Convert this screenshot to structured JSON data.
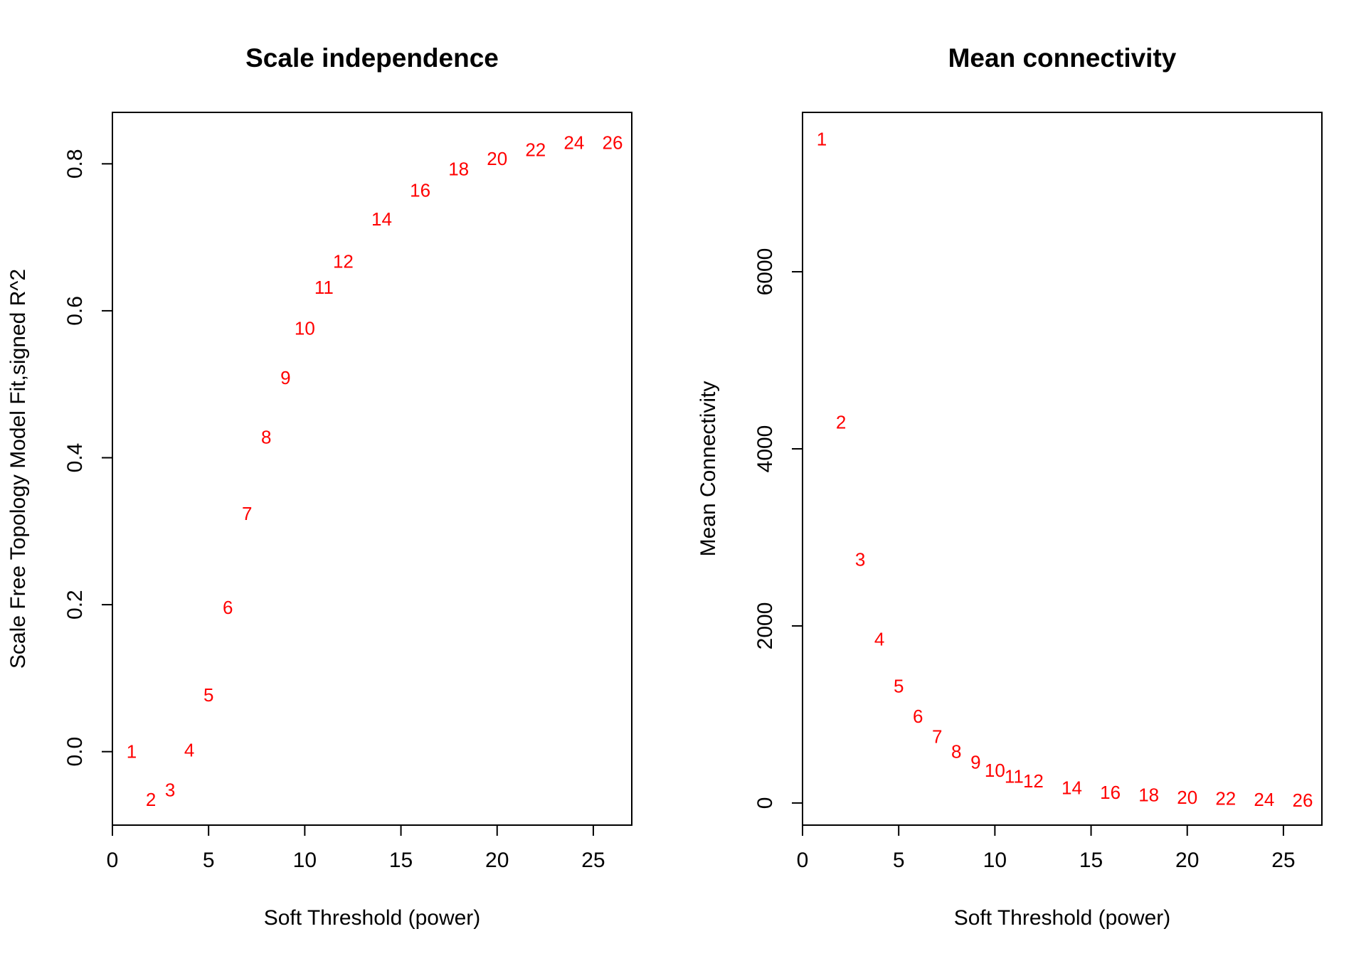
{
  "chart_data": [
    {
      "type": "scatter",
      "title": "Scale independence",
      "xlabel": "Soft Threshold (power)",
      "ylabel": "Scale Free Topology Model Fit,signed R^2",
      "xlim": [
        0,
        27
      ],
      "ylim": [
        -0.1,
        0.87
      ],
      "xticks": [
        0,
        5,
        10,
        15,
        20,
        25
      ],
      "yticks": [
        0.0,
        0.2,
        0.4,
        0.6,
        0.8
      ],
      "ytick_labels": [
        "0.0",
        "0.2",
        "0.4",
        "0.6",
        "0.8"
      ],
      "marker_color": "#ff0000",
      "marker": "text labels of power value",
      "points": [
        {
          "x": 1,
          "y": 0.0,
          "label": "1"
        },
        {
          "x": 2,
          "y": -0.065,
          "label": "2"
        },
        {
          "x": 3,
          "y": -0.052,
          "label": "3"
        },
        {
          "x": 4,
          "y": 0.002,
          "label": "4"
        },
        {
          "x": 5,
          "y": 0.077,
          "label": "5"
        },
        {
          "x": 6,
          "y": 0.196,
          "label": "6"
        },
        {
          "x": 7,
          "y": 0.324,
          "label": "7"
        },
        {
          "x": 8,
          "y": 0.428,
          "label": "8"
        },
        {
          "x": 9,
          "y": 0.509,
          "label": "9"
        },
        {
          "x": 10,
          "y": 0.576,
          "label": "10"
        },
        {
          "x": 11,
          "y": 0.632,
          "label": "11"
        },
        {
          "x": 12,
          "y": 0.667,
          "label": "12"
        },
        {
          "x": 14,
          "y": 0.725,
          "label": "14"
        },
        {
          "x": 16,
          "y": 0.764,
          "label": "16"
        },
        {
          "x": 18,
          "y": 0.793,
          "label": "18"
        },
        {
          "x": 20,
          "y": 0.807,
          "label": "20"
        },
        {
          "x": 22,
          "y": 0.819,
          "label": "22"
        },
        {
          "x": 24,
          "y": 0.829,
          "label": "24"
        },
        {
          "x": 26,
          "y": 0.829,
          "label": "26"
        }
      ]
    },
    {
      "type": "scatter",
      "title": "Mean connectivity",
      "xlabel": "Soft Threshold (power)",
      "ylabel": "Mean Connectivity",
      "xlim": [
        0,
        27
      ],
      "ylim": [
        -250,
        7800
      ],
      "xticks": [
        0,
        5,
        10,
        15,
        20,
        25
      ],
      "yticks": [
        0,
        2000,
        4000,
        6000
      ],
      "ytick_labels": [
        "0",
        "2000",
        "4000",
        "6000"
      ],
      "marker_color": "#ff0000",
      "marker": "text labels of power value",
      "points": [
        {
          "x": 1,
          "y": 7500,
          "label": "1"
        },
        {
          "x": 2,
          "y": 4300,
          "label": "2"
        },
        {
          "x": 3,
          "y": 2750,
          "label": "3"
        },
        {
          "x": 4,
          "y": 1850,
          "label": "4"
        },
        {
          "x": 5,
          "y": 1320,
          "label": "5"
        },
        {
          "x": 6,
          "y": 980,
          "label": "6"
        },
        {
          "x": 7,
          "y": 750,
          "label": "7"
        },
        {
          "x": 8,
          "y": 580,
          "label": "8"
        },
        {
          "x": 9,
          "y": 460,
          "label": "9"
        },
        {
          "x": 10,
          "y": 370,
          "label": "10"
        },
        {
          "x": 11,
          "y": 300,
          "label": "11"
        },
        {
          "x": 12,
          "y": 250,
          "label": "12"
        },
        {
          "x": 14,
          "y": 170,
          "label": "14"
        },
        {
          "x": 16,
          "y": 120,
          "label": "16"
        },
        {
          "x": 18,
          "y": 90,
          "label": "18"
        },
        {
          "x": 20,
          "y": 65,
          "label": "20"
        },
        {
          "x": 22,
          "y": 50,
          "label": "22"
        },
        {
          "x": 24,
          "y": 40,
          "label": "24"
        },
        {
          "x": 26,
          "y": 30,
          "label": "26"
        }
      ]
    }
  ]
}
